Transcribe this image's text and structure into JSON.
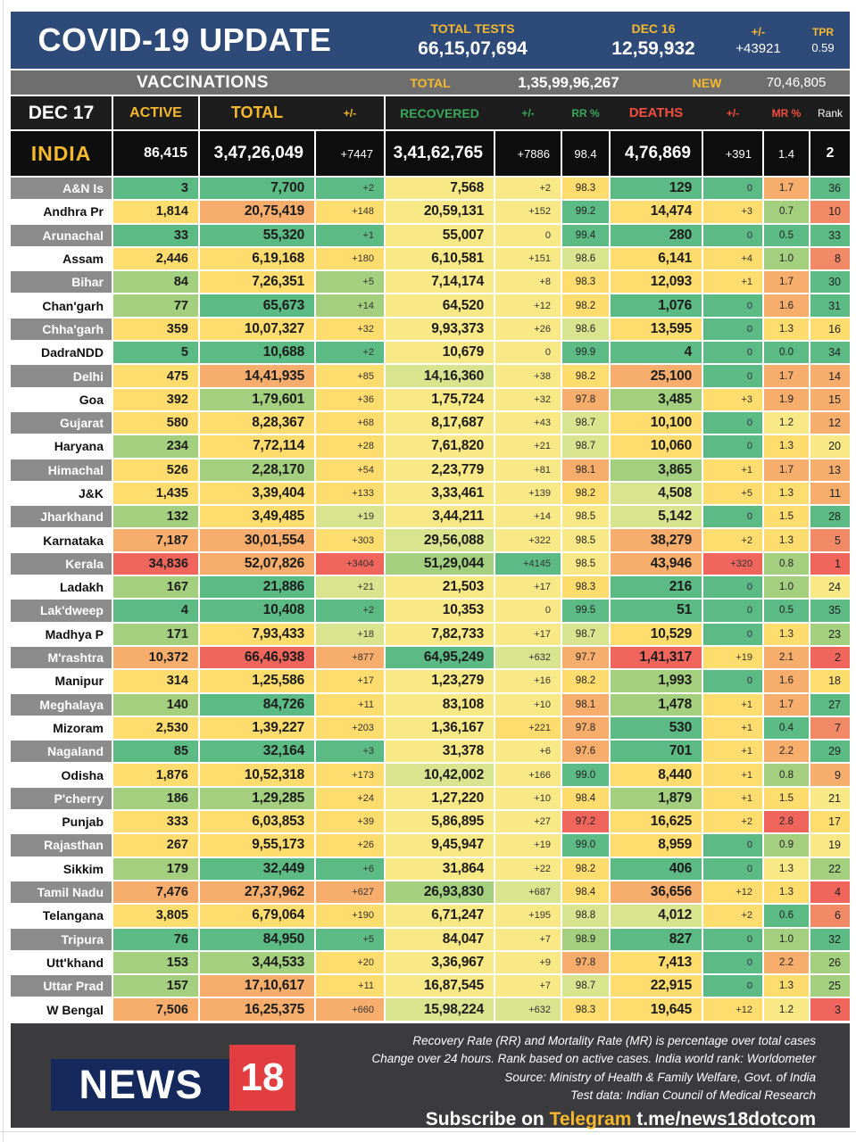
{
  "header": {
    "title": "COVID-19 UPDATE",
    "total_tests_label": "TOTAL TESTS",
    "total_tests_value": "66,15,07,694",
    "date_label": "DEC 16",
    "date_value": "12,59,932",
    "delta_label": "+/-",
    "delta_value": "+43921",
    "tpr_label": "TPR",
    "tpr_value": "0.59"
  },
  "vaccinations": {
    "label": "VACCINATIONS",
    "total_label": "TOTAL",
    "total_value": "1,35,99,96,267",
    "new_label": "NEW",
    "new_value": "70,46,805"
  },
  "theme": {
    "header_blue": "#2e4a78",
    "vacc_gray": "#6e6e6e",
    "head_black": "#1d1d1d",
    "gold": "#f6b92e",
    "green": "#3aa65a",
    "red": "#f04e3e",
    "label_gray": "#8c8c8c",
    "footer_gray": "#3b3a3c",
    "logo_navy": "#16295c",
    "logo_red": "#e23d40",
    "palette": {
      "g": "#5cba84",
      "lg": "#a3cf7e",
      "yg": "#d9e48f",
      "ly": "#f9e886",
      "y": "#ffdc6e",
      "o": "#f7ae6d",
      "ro": "#f28a67",
      "r": "#f0665c"
    }
  },
  "chart_data": {
    "type": "table",
    "title": "COVID-19 UPDATE",
    "date": "DEC 17",
    "columns": [
      "ACTIVE",
      "TOTAL",
      "+/-",
      "RECOVERED",
      "+/-",
      "RR %",
      "DEATHS",
      "+/-",
      "MR %",
      "Rank"
    ],
    "column_keys": [
      "active",
      "total",
      "total-delta",
      "recovered",
      "recovered-delta",
      "rr-pct",
      "deaths",
      "deaths-delta",
      "mr-pct",
      "rank"
    ],
    "india": {
      "label": "INDIA",
      "values": [
        "86,415",
        "3,47,26,049",
        "+7447",
        "3,41,62,765",
        "+7886",
        "98.4",
        "4,76,869",
        "+391",
        "1.4",
        "2"
      ]
    },
    "rows": [
      {
        "state": "A&N Is",
        "values": [
          "3",
          "7,700",
          "+2",
          "7,568",
          "+2",
          "98.3",
          "129",
          "0",
          "1.7",
          "36"
        ],
        "colors": [
          "g",
          "g",
          "g",
          "ly",
          "ly",
          "y",
          "g",
          "g",
          "o",
          "g"
        ]
      },
      {
        "state": "Andhra Pr",
        "values": [
          "1,814",
          "20,75,419",
          "+148",
          "20,59,131",
          "+152",
          "99.2",
          "14,474",
          "+3",
          "0.7",
          "10"
        ],
        "colors": [
          "y",
          "o",
          "y",
          "ly",
          "ly",
          "g",
          "y",
          "y",
          "lg",
          "ro"
        ]
      },
      {
        "state": "Arunachal",
        "values": [
          "33",
          "55,320",
          "+1",
          "55,007",
          "0",
          "99.4",
          "280",
          "0",
          "0.5",
          "33"
        ],
        "colors": [
          "g",
          "g",
          "g",
          "ly",
          "ly",
          "g",
          "g",
          "g",
          "g",
          "g"
        ]
      },
      {
        "state": "Assam",
        "values": [
          "2,446",
          "6,19,168",
          "+180",
          "6,10,581",
          "+151",
          "98.6",
          "6,141",
          "+4",
          "1.0",
          "8"
        ],
        "colors": [
          "y",
          "y",
          "y",
          "ly",
          "ly",
          "yg",
          "y",
          "y",
          "lg",
          "ro"
        ]
      },
      {
        "state": "Bihar",
        "values": [
          "84",
          "7,26,351",
          "+5",
          "7,14,174",
          "+8",
          "98.3",
          "12,093",
          "+1",
          "1.7",
          "30"
        ],
        "colors": [
          "lg",
          "y",
          "lg",
          "ly",
          "ly",
          "y",
          "y",
          "y",
          "o",
          "g"
        ]
      },
      {
        "state": "Chan'garh",
        "values": [
          "77",
          "65,673",
          "+14",
          "64,520",
          "+12",
          "98.2",
          "1,076",
          "0",
          "1.6",
          "31"
        ],
        "colors": [
          "lg",
          "g",
          "lg",
          "ly",
          "ly",
          "y",
          "g",
          "g",
          "o",
          "g"
        ]
      },
      {
        "state": "Chha'garh",
        "values": [
          "359",
          "10,07,327",
          "+32",
          "9,93,373",
          "+26",
          "98.6",
          "13,595",
          "0",
          "1.3",
          "16"
        ],
        "colors": [
          "y",
          "y",
          "y",
          "ly",
          "ly",
          "yg",
          "y",
          "g",
          "y",
          "y"
        ]
      },
      {
        "state": "DadraNDD",
        "values": [
          "5",
          "10,688",
          "+2",
          "10,679",
          "0",
          "99.9",
          "4",
          "0",
          "0.0",
          "34"
        ],
        "colors": [
          "g",
          "g",
          "g",
          "ly",
          "ly",
          "g",
          "g",
          "g",
          "g",
          "g"
        ]
      },
      {
        "state": "Delhi",
        "values": [
          "475",
          "14,41,935",
          "+85",
          "14,16,360",
          "+38",
          "98.2",
          "25,100",
          "0",
          "1.7",
          "14"
        ],
        "colors": [
          "y",
          "o",
          "y",
          "yg",
          "ly",
          "y",
          "o",
          "g",
          "o",
          "o"
        ]
      },
      {
        "state": "Goa",
        "values": [
          "392",
          "1,79,601",
          "+36",
          "1,75,724",
          "+32",
          "97.8",
          "3,485",
          "+3",
          "1.9",
          "15"
        ],
        "colors": [
          "y",
          "lg",
          "y",
          "ly",
          "ly",
          "o",
          "lg",
          "y",
          "o",
          "o"
        ]
      },
      {
        "state": "Gujarat",
        "values": [
          "580",
          "8,28,367",
          "+68",
          "8,17,687",
          "+43",
          "98.7",
          "10,100",
          "0",
          "1.2",
          "12"
        ],
        "colors": [
          "y",
          "y",
          "y",
          "ly",
          "ly",
          "yg",
          "y",
          "g",
          "ly",
          "o"
        ]
      },
      {
        "state": "Haryana",
        "values": [
          "234",
          "7,72,114",
          "+28",
          "7,61,820",
          "+21",
          "98.7",
          "10,060",
          "0",
          "1.3",
          "20"
        ],
        "colors": [
          "lg",
          "y",
          "y",
          "ly",
          "ly",
          "yg",
          "y",
          "g",
          "y",
          "ly"
        ]
      },
      {
        "state": "Himachal",
        "values": [
          "526",
          "2,28,170",
          "+54",
          "2,23,779",
          "+81",
          "98.1",
          "3,865",
          "+1",
          "1.7",
          "13"
        ],
        "colors": [
          "y",
          "lg",
          "y",
          "ly",
          "ly",
          "o",
          "lg",
          "y",
          "o",
          "o"
        ]
      },
      {
        "state": "J&K",
        "values": [
          "1,435",
          "3,39,404",
          "+133",
          "3,33,461",
          "+139",
          "98.2",
          "4,508",
          "+5",
          "1.3",
          "11"
        ],
        "colors": [
          "y",
          "y",
          "y",
          "ly",
          "ly",
          "y",
          "yg",
          "y",
          "y",
          "o"
        ]
      },
      {
        "state": "Jharkhand",
        "values": [
          "132",
          "3,49,485",
          "+19",
          "3,44,211",
          "+14",
          "98.5",
          "5,142",
          "0",
          "1.5",
          "28"
        ],
        "colors": [
          "lg",
          "y",
          "yg",
          "ly",
          "ly",
          "ly",
          "yg",
          "g",
          "y",
          "g"
        ]
      },
      {
        "state": "Karnataka",
        "values": [
          "7,187",
          "30,01,554",
          "+303",
          "29,56,088",
          "+322",
          "98.5",
          "38,279",
          "+2",
          "1.3",
          "5"
        ],
        "colors": [
          "o",
          "o",
          "y",
          "yg",
          "ly",
          "ly",
          "o",
          "y",
          "y",
          "ro"
        ]
      },
      {
        "state": "Kerala",
        "values": [
          "34,836",
          "52,07,826",
          "+3404",
          "51,29,044",
          "+4145",
          "98.5",
          "43,946",
          "+320",
          "0.8",
          "1"
        ],
        "colors": [
          "r",
          "o",
          "r",
          "lg",
          "g",
          "ly",
          "o",
          "r",
          "lg",
          "r"
        ]
      },
      {
        "state": "Ladakh",
        "values": [
          "167",
          "21,886",
          "+21",
          "21,503",
          "+17",
          "98.3",
          "216",
          "0",
          "1.0",
          "24"
        ],
        "colors": [
          "lg",
          "g",
          "yg",
          "ly",
          "ly",
          "y",
          "g",
          "g",
          "lg",
          "ly"
        ]
      },
      {
        "state": "Lak'dweep",
        "values": [
          "4",
          "10,408",
          "+2",
          "10,353",
          "0",
          "99.5",
          "51",
          "0",
          "0.5",
          "35"
        ],
        "colors": [
          "g",
          "g",
          "g",
          "ly",
          "ly",
          "g",
          "g",
          "g",
          "g",
          "g"
        ]
      },
      {
        "state": "Madhya P",
        "values": [
          "171",
          "7,93,433",
          "+18",
          "7,82,733",
          "+17",
          "98.7",
          "10,529",
          "0",
          "1.3",
          "23"
        ],
        "colors": [
          "lg",
          "y",
          "yg",
          "ly",
          "ly",
          "yg",
          "y",
          "g",
          "y",
          "lg"
        ]
      },
      {
        "state": "M'rashtra",
        "values": [
          "10,372",
          "66,46,938",
          "+877",
          "64,95,249",
          "+632",
          "97.7",
          "1,41,317",
          "+19",
          "2.1",
          "2"
        ],
        "colors": [
          "o",
          "r",
          "o",
          "g",
          "yg",
          "o",
          "r",
          "y",
          "o",
          "r"
        ]
      },
      {
        "state": "Manipur",
        "values": [
          "314",
          "1,25,586",
          "+17",
          "1,23,279",
          "+16",
          "98.2",
          "1,993",
          "0",
          "1.6",
          "18"
        ],
        "colors": [
          "y",
          "y",
          "y",
          "ly",
          "ly",
          "y",
          "lg",
          "g",
          "o",
          "y"
        ]
      },
      {
        "state": "Meghalaya",
        "values": [
          "140",
          "84,726",
          "+11",
          "83,108",
          "+10",
          "98.1",
          "1,478",
          "+1",
          "1.7",
          "27"
        ],
        "colors": [
          "lg",
          "g",
          "y",
          "ly",
          "ly",
          "o",
          "lg",
          "y",
          "o",
          "g"
        ]
      },
      {
        "state": "Mizoram",
        "values": [
          "2,530",
          "1,39,227",
          "+203",
          "1,36,167",
          "+221",
          "97.8",
          "530",
          "+1",
          "0.4",
          "7"
        ],
        "colors": [
          "y",
          "y",
          "y",
          "ly",
          "y",
          "o",
          "g",
          "y",
          "g",
          "ro"
        ]
      },
      {
        "state": "Nagaland",
        "values": [
          "85",
          "32,164",
          "+3",
          "31,378",
          "+6",
          "97.6",
          "701",
          "+1",
          "2.2",
          "29"
        ],
        "colors": [
          "g",
          "g",
          "g",
          "ly",
          "ly",
          "o",
          "g",
          "y",
          "o",
          "g"
        ]
      },
      {
        "state": "Odisha",
        "values": [
          "1,876",
          "10,52,318",
          "+173",
          "10,42,002",
          "+166",
          "99.0",
          "8,440",
          "+1",
          "0.8",
          "9"
        ],
        "colors": [
          "y",
          "y",
          "y",
          "yg",
          "ly",
          "g",
          "y",
          "y",
          "lg",
          "o"
        ]
      },
      {
        "state": "P'cherry",
        "values": [
          "186",
          "1,29,285",
          "+24",
          "1,27,220",
          "+10",
          "98.4",
          "1,879",
          "+1",
          "1.5",
          "21"
        ],
        "colors": [
          "lg",
          "lg",
          "y",
          "ly",
          "ly",
          "y",
          "lg",
          "y",
          "y",
          "ly"
        ]
      },
      {
        "state": "Punjab",
        "values": [
          "333",
          "6,03,853",
          "+39",
          "5,86,895",
          "+27",
          "97.2",
          "16,625",
          "+2",
          "2.8",
          "17"
        ],
        "colors": [
          "y",
          "y",
          "y",
          "ly",
          "ly",
          "r",
          "y",
          "y",
          "r",
          "y"
        ]
      },
      {
        "state": "Rajasthan",
        "values": [
          "267",
          "9,55,173",
          "+26",
          "9,45,947",
          "+19",
          "99.0",
          "8,959",
          "0",
          "0.9",
          "19"
        ],
        "colors": [
          "y",
          "y",
          "y",
          "ly",
          "ly",
          "g",
          "y",
          "g",
          "lg",
          "ly"
        ]
      },
      {
        "state": "Sikkim",
        "values": [
          "179",
          "32,449",
          "+6",
          "31,864",
          "+22",
          "98.2",
          "406",
          "0",
          "1.3",
          "22"
        ],
        "colors": [
          "lg",
          "g",
          "g",
          "ly",
          "ly",
          "y",
          "g",
          "g",
          "ly",
          "lg"
        ]
      },
      {
        "state": "Tamil Nadu",
        "values": [
          "7,476",
          "27,37,962",
          "+627",
          "26,93,830",
          "+687",
          "98.4",
          "36,656",
          "+12",
          "1.3",
          "4"
        ],
        "colors": [
          "o",
          "o",
          "o",
          "lg",
          "yg",
          "y",
          "o",
          "y",
          "y",
          "r"
        ]
      },
      {
        "state": "Telangana",
        "values": [
          "3,805",
          "6,79,064",
          "+190",
          "6,71,247",
          "+195",
          "98.8",
          "4,012",
          "+2",
          "0.6",
          "6"
        ],
        "colors": [
          "y",
          "y",
          "y",
          "ly",
          "ly",
          "yg",
          "yg",
          "y",
          "g",
          "ro"
        ]
      },
      {
        "state": "Tripura",
        "values": [
          "76",
          "84,950",
          "+5",
          "84,047",
          "+7",
          "98.9",
          "827",
          "0",
          "1.0",
          "32"
        ],
        "colors": [
          "g",
          "g",
          "g",
          "ly",
          "ly",
          "lg",
          "g",
          "g",
          "lg",
          "g"
        ]
      },
      {
        "state": "Utt'khand",
        "values": [
          "153",
          "3,44,533",
          "+20",
          "3,36,967",
          "+9",
          "97.8",
          "7,413",
          "0",
          "2.2",
          "26"
        ],
        "colors": [
          "lg",
          "lg",
          "y",
          "ly",
          "ly",
          "o",
          "y",
          "g",
          "o",
          "lg"
        ]
      },
      {
        "state": "Uttar Prad",
        "values": [
          "157",
          "17,10,617",
          "+11",
          "16,87,545",
          "+7",
          "98.7",
          "22,915",
          "0",
          "1.3",
          "25"
        ],
        "colors": [
          "lg",
          "o",
          "y",
          "ly",
          "ly",
          "yg",
          "y",
          "g",
          "y",
          "lg"
        ]
      },
      {
        "state": "W Bengal",
        "values": [
          "7,506",
          "16,25,375",
          "+660",
          "15,98,224",
          "+632",
          "98.3",
          "19,645",
          "+12",
          "1.2",
          "3"
        ],
        "colors": [
          "o",
          "o",
          "o",
          "yg",
          "yg",
          "y",
          "y",
          "y",
          "ly",
          "r"
        ]
      }
    ]
  },
  "footer": {
    "logo_news": "NEWS",
    "logo_18": "18",
    "notes": [
      "Recovery Rate (RR) and Mortality Rate (MR) is percentage over total cases",
      "Change over 24 hours. Rank based on active cases. India world rank: Worldometer",
      "Source: Ministry of Health & Family Welfare, Govt. of India",
      "Test data: Indian Council of Medical Research"
    ],
    "subscribe_prefix": "Subscribe on",
    "subscribe_highlight": "Telegram",
    "subscribe_suffix": "t.me/news18dotcom"
  }
}
